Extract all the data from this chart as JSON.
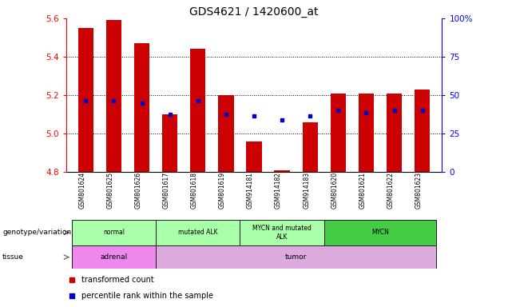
{
  "title": "GDS4621 / 1420600_at",
  "samples": [
    "GSM801624",
    "GSM801625",
    "GSM801626",
    "GSM801617",
    "GSM801618",
    "GSM801619",
    "GSM914181",
    "GSM914182",
    "GSM914183",
    "GSM801620",
    "GSM801621",
    "GSM801622",
    "GSM801623"
  ],
  "red_values": [
    5.55,
    5.59,
    5.47,
    5.1,
    5.44,
    5.2,
    4.96,
    4.81,
    5.06,
    5.21,
    5.21,
    5.21,
    5.23
  ],
  "blue_values": [
    5.17,
    5.17,
    5.16,
    5.1,
    5.17,
    5.1,
    5.09,
    5.07,
    5.09,
    5.12,
    5.11,
    5.12,
    5.12
  ],
  "ylim": [
    4.8,
    5.6
  ],
  "yticks_left": [
    4.8,
    5.0,
    5.2,
    5.4,
    5.6
  ],
  "yticks_right_vals": [
    0,
    25,
    50,
    75,
    100
  ],
  "ytick_labels_right": [
    "0",
    "25",
    "50",
    "75",
    "100%"
  ],
  "bar_bottom": 4.8,
  "bar_color": "#cc0000",
  "dot_color": "#0000cc",
  "group_labels": [
    "normal",
    "mutated ALK",
    "MYCN and mutated\nALK",
    "MYCN"
  ],
  "group_ranges": [
    [
      0,
      3
    ],
    [
      3,
      6
    ],
    [
      6,
      9
    ],
    [
      9,
      13
    ]
  ],
  "group_colors": [
    "#aaffaa",
    "#aaffaa",
    "#aaffaa",
    "#44cc44"
  ],
  "tissue_labels": [
    "adrenal",
    "tumor"
  ],
  "tissue_ranges": [
    [
      0,
      3
    ],
    [
      3,
      13
    ]
  ],
  "tissue_color_adrenal": "#ee88ee",
  "tissue_color_tumor": "#ddaadd",
  "legend_red_label": "transformed count",
  "legend_blue_label": "percentile rank within the sample",
  "row_label_geno": "genotype/variation",
  "row_label_tissue": "tissue"
}
